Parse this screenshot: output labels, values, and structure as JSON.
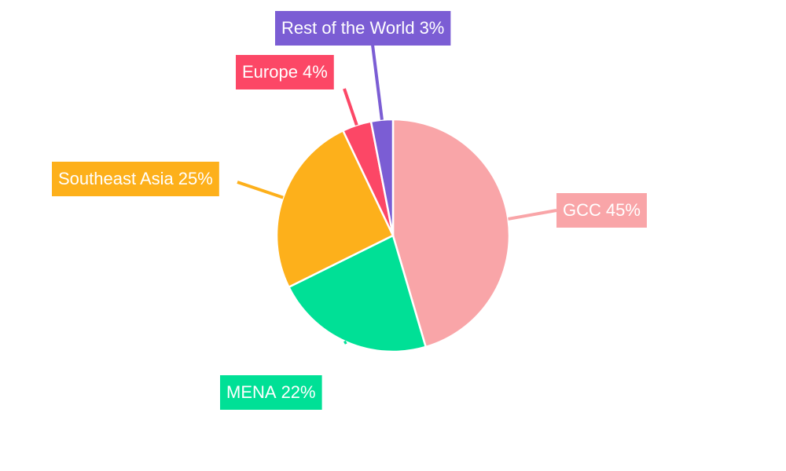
{
  "chart_data": {
    "type": "pie",
    "categories": [
      "GCC",
      "MENA",
      "Southeast Asia",
      "Europe",
      "Rest of the World"
    ],
    "values": [
      45,
      22,
      25,
      4,
      3
    ],
    "value_labels": [
      "45%",
      "22%",
      "25%",
      "4%",
      "3%"
    ],
    "colors": [
      "#f9a5a8",
      "#00e096",
      "#fdb01b",
      "#fc4766",
      "#7b5dd4"
    ]
  }
}
